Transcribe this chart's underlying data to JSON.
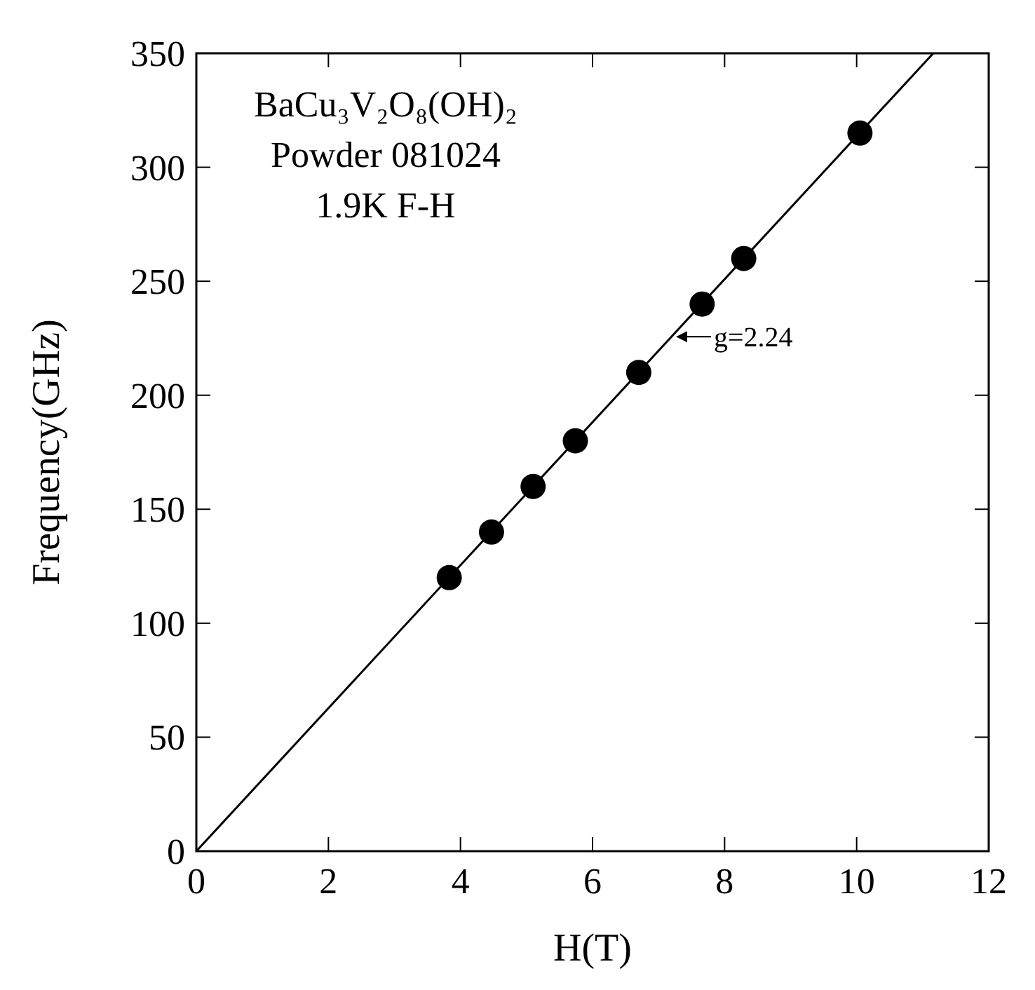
{
  "chart_data": {
    "type": "scatter",
    "xlabel": "H(T)",
    "ylabel": "Frequency(GHz)",
    "xlim": [
      0,
      12
    ],
    "ylim": [
      0,
      350
    ],
    "xticks": [
      0,
      2,
      4,
      6,
      8,
      10,
      12
    ],
    "yticks": [
      0,
      50,
      100,
      150,
      200,
      250,
      300,
      350
    ],
    "grid": false,
    "marker": "circle",
    "series": [
      {
        "color": "#000000",
        "x": [
          3.83,
          4.47,
          5.1,
          5.74,
          6.7,
          7.66,
          8.29,
          10.05
        ],
        "values": [
          120,
          140,
          160,
          180,
          210,
          240,
          260,
          315
        ]
      },
      {
        "type": "line",
        "color": "#000000",
        "line_style": "solid",
        "marker": "none",
        "x": [
          0,
          11.16
        ],
        "values": [
          0,
          350
        ]
      }
    ],
    "annotations": [
      "BaCu₃V₂O₈(OH)₂",
      "Powder 081024",
      "1.9K F-H",
      {
        "text": "g=2.24",
        "x": 7.2,
        "y": 225.7
      }
    ]
  }
}
